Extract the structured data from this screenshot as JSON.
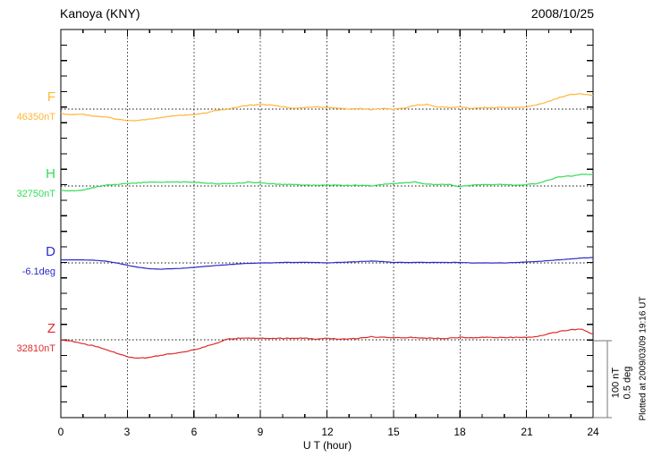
{
  "header": {
    "title": "Kanoya (KNY)",
    "date": "2008/10/25"
  },
  "axis": {
    "xlabel": "U T (hour)",
    "tick_labels": [
      "0",
      "3",
      "6",
      "9",
      "12",
      "15",
      "18",
      "21",
      "24"
    ]
  },
  "scalebar": {
    "line1": "100 nT",
    "line2": "0.5 deg",
    "color": "#777777"
  },
  "footer": {
    "plotted_at": "Plotted at 2009/03/09 19:16 UT"
  },
  "chart_data": {
    "type": "line",
    "title": "Kanoya (KNY)",
    "subtitle": "2008/10/25",
    "xlabel": "U T (hour)",
    "x_range": [
      0,
      24
    ],
    "x_major_ticks": [
      0,
      3,
      6,
      9,
      12,
      15,
      18,
      21,
      24
    ],
    "x_minor_tick_step_hours": 1,
    "x_step_hours": 0.5,
    "grid": "vertical dotted lines every 3 h; dotted horizontal baseline per trace",
    "legend_position": "left margin labels",
    "scale": {
      "nT_per_division": 100,
      "deg_per_division": 0.5
    },
    "series": [
      {
        "name": "F",
        "baseline_label": "46350nT",
        "baseline_value": 46350,
        "unit": "nT",
        "color": "#FFB637",
        "offsets_from_baseline": [
          -6,
          -7,
          -7,
          -9,
          -10,
          -13,
          -15,
          -15,
          -13,
          -11,
          -9,
          -8,
          -7,
          -5,
          -2,
          0,
          3,
          5,
          6,
          5,
          3,
          1,
          2,
          3,
          2,
          1,
          0,
          1,
          -1,
          1,
          0,
          1,
          5,
          6,
          3,
          2,
          3,
          1,
          2,
          2,
          2,
          2,
          3,
          6,
          10,
          15,
          19,
          20,
          17
        ]
      },
      {
        "name": "H",
        "baseline_label": "32750nT",
        "baseline_value": 32750,
        "unit": "nT",
        "color": "#2FDE57",
        "offsets_from_baseline": [
          -6,
          -6,
          -5,
          -2,
          1,
          2,
          3,
          4,
          5,
          5,
          5,
          5,
          5,
          4,
          3,
          3,
          4,
          5,
          4,
          3,
          2,
          2,
          1,
          1,
          1,
          1,
          1,
          1,
          0,
          2,
          3,
          4,
          5,
          2,
          2,
          2,
          -1,
          1,
          2,
          2,
          2,
          1,
          2,
          3,
          8,
          12,
          13,
          15,
          15
        ]
      },
      {
        "name": "D",
        "baseline_label": "-6.1deg",
        "baseline_value": -6.1,
        "unit": "deg",
        "color": "#2B2BCB",
        "offsets_from_baseline": [
          0.02,
          0.02,
          0.02,
          0.017,
          0.012,
          0,
          -0.015,
          -0.029,
          -0.038,
          -0.041,
          -0.038,
          -0.035,
          -0.029,
          -0.023,
          -0.017,
          -0.012,
          -0.006,
          -0.003,
          0,
          0,
          0.003,
          0.003,
          0.003,
          0.003,
          0,
          0.003,
          0.006,
          0.009,
          0.012,
          0.009,
          0.003,
          0.003,
          0.003,
          0.003,
          0.003,
          0.003,
          0.003,
          0,
          0,
          0,
          0,
          0.003,
          0.006,
          0.009,
          0.015,
          0.02,
          0.026,
          0.032,
          0.035
        ]
      },
      {
        "name": "Z",
        "baseline_label": "32810nT",
        "baseline_value": 32810,
        "unit": "nT",
        "color": "#DF2B2B",
        "offsets_from_baseline": [
          0,
          -2,
          -5,
          -8,
          -12,
          -17,
          -22,
          -24,
          -23,
          -20,
          -18,
          -16,
          -13,
          -9,
          -5,
          1,
          2,
          2,
          2,
          2,
          2,
          2,
          2,
          1,
          2,
          1,
          1,
          2,
          4,
          3,
          3,
          3,
          3,
          2,
          2,
          2,
          3,
          3,
          3,
          3,
          3,
          3,
          3,
          4,
          8,
          11,
          13,
          14,
          7
        ]
      }
    ]
  }
}
